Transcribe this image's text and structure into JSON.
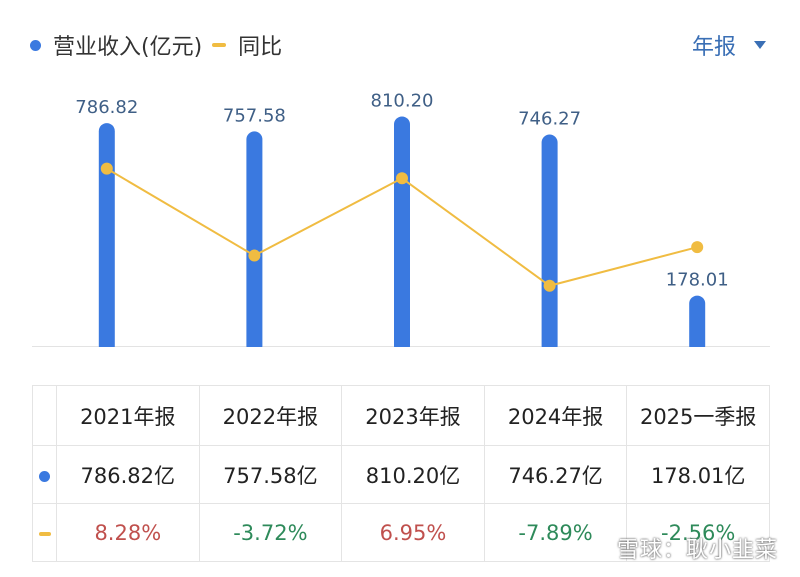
{
  "legend": {
    "revenue_label": "营业收入(亿元)",
    "yoy_label": "同比",
    "colors": {
      "bar": "#3a79e0",
      "line": "#f0bc42",
      "positive": "#c0504d",
      "negative": "#2e8a5a"
    }
  },
  "period_selector": {
    "label": "年报",
    "icon": "caret-down-icon"
  },
  "chart_data": {
    "type": "bar",
    "categories": [
      "2021年报",
      "2022年报",
      "2023年报",
      "2024年报",
      "2025一季报"
    ],
    "series": [
      {
        "name": "营业收入(亿元)",
        "type": "bar",
        "values": [
          786.82,
          757.58,
          810.2,
          746.27,
          178.01
        ]
      },
      {
        "name": "同比",
        "type": "line",
        "values": [
          8.28,
          -3.72,
          6.95,
          -7.89,
          -2.56
        ],
        "unit": "%"
      }
    ],
    "data_labels": [
      "786.82",
      "757.58",
      "810.20",
      "746.27",
      "178.01"
    ],
    "bar_ylim": [
      0,
      840
    ],
    "line_ylim": [
      -14,
      15
    ],
    "grid": false,
    "legend_position": "top-left"
  },
  "table": {
    "headers": [
      "2021年报",
      "2022年报",
      "2023年报",
      "2024年报",
      "2025一季报"
    ],
    "revenue_row": [
      "786.82亿",
      "757.58亿",
      "810.20亿",
      "746.27亿",
      "178.01亿"
    ],
    "yoy_row": [
      "8.28%",
      "-3.72%",
      "6.95%",
      "-7.89%",
      "-2.56%"
    ]
  },
  "watermark": "雪球：耿小韭菜"
}
